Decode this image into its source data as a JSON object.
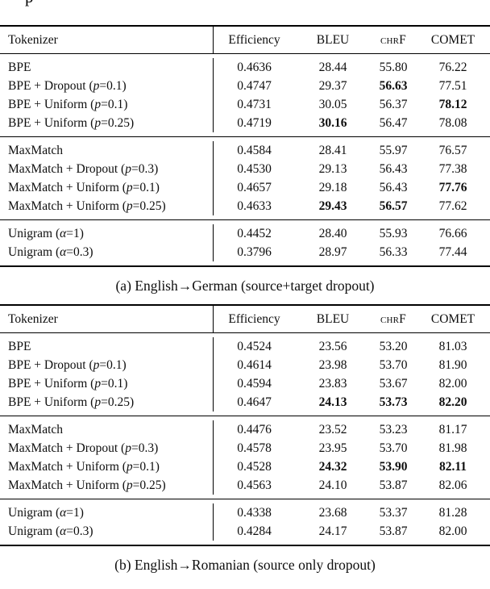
{
  "page": {
    "top_fragment": "p"
  },
  "tables": [
    {
      "caption": "(a) English→German (source+target dropout)",
      "columns": {
        "tokenizer": "Tokenizer",
        "efficiency": "Efficiency",
        "bleu": "BLEU",
        "chrf": "chrF",
        "comet": "COMET"
      },
      "groups": [
        {
          "rows": [
            {
              "label": "BPE",
              "efficiency": "0.4636",
              "bleu": "28.44",
              "chrf": "55.80",
              "comet": "76.22",
              "bold": []
            },
            {
              "label": "BPE + Dropout (<i>p</i>=0.1)",
              "efficiency": "0.4747",
              "bleu": "29.37",
              "chrf": "56.63",
              "comet": "77.51",
              "bold": [
                "chrf"
              ]
            },
            {
              "label": "BPE + Uniform (<i>p</i>=0.1)",
              "efficiency": "0.4731",
              "bleu": "30.05",
              "chrf": "56.37",
              "comet": "78.12",
              "bold": [
                "comet"
              ]
            },
            {
              "label": "BPE + Uniform (<i>p</i>=0.25)",
              "efficiency": "0.4719",
              "bleu": "30.16",
              "chrf": "56.47",
              "comet": "78.08",
              "bold": [
                "bleu"
              ]
            }
          ]
        },
        {
          "rows": [
            {
              "label": "MaxMatch",
              "efficiency": "0.4584",
              "bleu": "28.41",
              "chrf": "55.97",
              "comet": "76.57",
              "bold": []
            },
            {
              "label": "MaxMatch + Dropout (<i>p</i>=0.3)",
              "efficiency": "0.4530",
              "bleu": "29.13",
              "chrf": "56.43",
              "comet": "77.38",
              "bold": []
            },
            {
              "label": "MaxMatch + Uniform (<i>p</i>=0.1)",
              "efficiency": "0.4657",
              "bleu": "29.18",
              "chrf": "56.43",
              "comet": "77.76",
              "bold": [
                "comet"
              ]
            },
            {
              "label": "MaxMatch + Uniform (<i>p</i>=0.25)",
              "efficiency": "0.4633",
              "bleu": "29.43",
              "chrf": "56.57",
              "comet": "77.62",
              "bold": [
                "bleu",
                "chrf"
              ]
            }
          ]
        },
        {
          "rows": [
            {
              "label": "Unigram (<i>α</i>=1)",
              "efficiency": "0.4452",
              "bleu": "28.40",
              "chrf": "55.93",
              "comet": "76.66",
              "bold": []
            },
            {
              "label": "Unigram (<i>α</i>=0.3)",
              "efficiency": "0.3796",
              "bleu": "28.97",
              "chrf": "56.33",
              "comet": "77.44",
              "bold": []
            }
          ]
        }
      ]
    },
    {
      "caption": "(b) English→Romanian (source only dropout)",
      "columns": {
        "tokenizer": "Tokenizer",
        "efficiency": "Efficiency",
        "bleu": "BLEU",
        "chrf": "chrF",
        "comet": "COMET"
      },
      "groups": [
        {
          "rows": [
            {
              "label": "BPE",
              "efficiency": "0.4524",
              "bleu": "23.56",
              "chrf": "53.20",
              "comet": "81.03",
              "bold": []
            },
            {
              "label": "BPE + Dropout (<i>p</i>=0.1)",
              "efficiency": "0.4614",
              "bleu": "23.98",
              "chrf": "53.70",
              "comet": "81.90",
              "bold": []
            },
            {
              "label": "BPE + Uniform (<i>p</i>=0.1)",
              "efficiency": "0.4594",
              "bleu": "23.83",
              "chrf": "53.67",
              "comet": "82.00",
              "bold": []
            },
            {
              "label": "BPE + Uniform (<i>p</i>=0.25)",
              "efficiency": "0.4647",
              "bleu": "24.13",
              "chrf": "53.73",
              "comet": "82.20",
              "bold": [
                "bleu",
                "chrf",
                "comet"
              ]
            }
          ]
        },
        {
          "rows": [
            {
              "label": "MaxMatch",
              "efficiency": "0.4476",
              "bleu": "23.52",
              "chrf": "53.23",
              "comet": "81.17",
              "bold": []
            },
            {
              "label": "MaxMatch + Dropout (<i>p</i>=0.3)",
              "efficiency": "0.4578",
              "bleu": "23.95",
              "chrf": "53.70",
              "comet": "81.98",
              "bold": []
            },
            {
              "label": "MaxMatch + Uniform (<i>p</i>=0.1)",
              "efficiency": "0.4528",
              "bleu": "24.32",
              "chrf": "53.90",
              "comet": "82.11",
              "bold": [
                "bleu",
                "chrf",
                "comet"
              ]
            },
            {
              "label": "MaxMatch + Uniform (<i>p</i>=0.25)",
              "efficiency": "0.4563",
              "bleu": "24.10",
              "chrf": "53.87",
              "comet": "82.06",
              "bold": []
            }
          ]
        },
        {
          "rows": [
            {
              "label": "Unigram (<i>α</i>=1)",
              "efficiency": "0.4338",
              "bleu": "23.68",
              "chrf": "53.37",
              "comet": "81.28",
              "bold": []
            },
            {
              "label": "Unigram (<i>α</i>=0.3)",
              "efficiency": "0.4284",
              "bleu": "24.17",
              "chrf": "53.87",
              "comet": "82.00",
              "bold": []
            }
          ]
        }
      ]
    }
  ]
}
